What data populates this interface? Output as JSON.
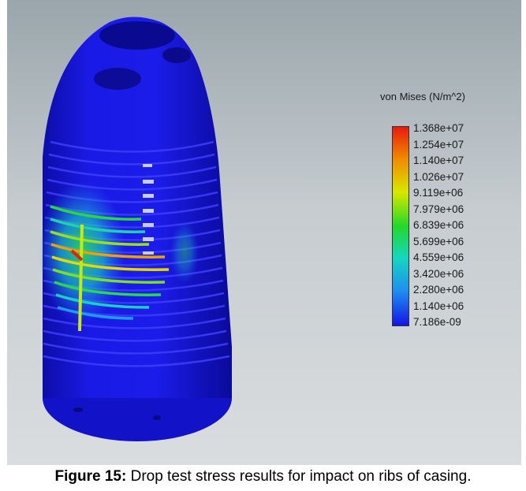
{
  "legend": {
    "title": "von Mises (N/m^2)",
    "labels": [
      "1.368e+07",
      "1.254e+07",
      "1.140e+07",
      "1.026e+07",
      "9.119e+06",
      "7.979e+06",
      "6.839e+06",
      "5.699e+06",
      "4.559e+06",
      "3.420e+06",
      "2.280e+06",
      "1.140e+06",
      "7.186e-09"
    ],
    "colors": {
      "max": "#e8190f",
      "high": "#f08a00",
      "mid_high": "#d8e800",
      "mid": "#23d82a",
      "mid_low": "#16d6c0",
      "low": "#1e8cf0",
      "min": "#1414e6"
    }
  },
  "model": {
    "base_color": "#1a1ae0",
    "shade_color": "#0e0eb0",
    "highlight_color": "#3a3af5"
  },
  "caption": {
    "label": "Figure 15:",
    "text": " Drop test stress results for impact on ribs of casing."
  }
}
